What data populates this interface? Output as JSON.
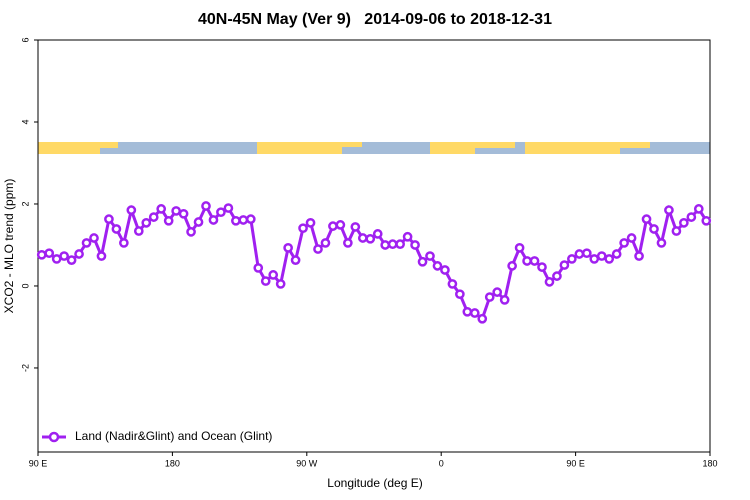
{
  "chart_data": {
    "type": "line",
    "title": "40N-45N May (Ver 9)   2014-09-06 to 2018-12-31",
    "xlabel": "Longitude (deg E)",
    "ylabel": "XCO2 - MLO trend (ppm)",
    "xlim": [
      90,
      540
    ],
    "xticks": [
      {
        "value": 90,
        "label": "90 E"
      },
      180,
      {
        "value": 270,
        "label": "90 W"
      },
      {
        "value": 360,
        "label": "0"
      },
      {
        "value": 450,
        "label": "90 E"
      },
      {
        "value": 540,
        "label": "180"
      }
    ],
    "ylim": [
      -4.05,
      6
    ],
    "yticks": [
      -2,
      0,
      2,
      4,
      6
    ],
    "legend": "bottom-left",
    "x": [
      92.5,
      97.5,
      102.5,
      107.5,
      112.5,
      117.5,
      122.5,
      127.5,
      132.5,
      137.5,
      142.5,
      147.5,
      152.5,
      157.5,
      162.5,
      167.5,
      172.5,
      177.5,
      182.5,
      187.5,
      192.5,
      197.5,
      202.5,
      207.5,
      212.5,
      217.5,
      222.5,
      227.5,
      232.5,
      237.5,
      242.5,
      247.5,
      252.5,
      257.5,
      262.5,
      267.5,
      272.5,
      277.5,
      282.5,
      287.5,
      292.5,
      297.5,
      302.5,
      307.5,
      312.5,
      317.5,
      322.5,
      327.5,
      332.5,
      337.5,
      342.5,
      347.5,
      352.5,
      357.5,
      362.5,
      367.5,
      372.5,
      377.5,
      382.5,
      387.5,
      392.5,
      397.5,
      402.5,
      407.5,
      412.5,
      417.5,
      422.5,
      427.5,
      432.5,
      437.5,
      442.5,
      447.5,
      452.5,
      457.5,
      462.5,
      467.5,
      472.5,
      477.5,
      482.5,
      487.5,
      492.5,
      497.5,
      502.5,
      507.5,
      512.5,
      517.5,
      522.5,
      527.5,
      532.5,
      537.5
    ],
    "series": [
      {
        "name": "Land (Nadir&Glint) and Ocean (Glint)",
        "color": "#a020f0",
        "values": [
          0.76,
          0.8,
          0.66,
          0.73,
          0.63,
          0.78,
          1.05,
          1.17,
          0.73,
          1.63,
          1.39,
          1.05,
          1.85,
          1.34,
          1.54,
          1.68,
          1.88,
          1.59,
          1.83,
          1.76,
          1.32,
          1.56,
          1.95,
          1.61,
          1.8,
          1.9,
          1.59,
          1.61,
          1.63,
          0.44,
          0.12,
          0.27,
          0.05,
          0.93,
          0.63,
          1.41,
          1.54,
          0.9,
          1.05,
          1.46,
          1.49,
          1.05,
          1.44,
          1.17,
          1.15,
          1.27,
          1.0,
          1.02,
          1.02,
          1.2,
          1.0,
          0.59,
          0.73,
          0.49,
          0.39,
          0.05,
          -0.2,
          -0.63,
          -0.66,
          -0.8,
          -0.27,
          -0.15,
          -0.34,
          0.49,
          0.93,
          0.61,
          0.61,
          0.46,
          0.1,
          0.24,
          0.51,
          0.66,
          0.78,
          0.8,
          0.66,
          0.73,
          0.66,
          0.78,
          1.05,
          1.17,
          0.73,
          1.63,
          1.39,
          1.05,
          1.85,
          1.34,
          1.54,
          1.68,
          1.88,
          1.59
        ]
      }
    ]
  }
}
